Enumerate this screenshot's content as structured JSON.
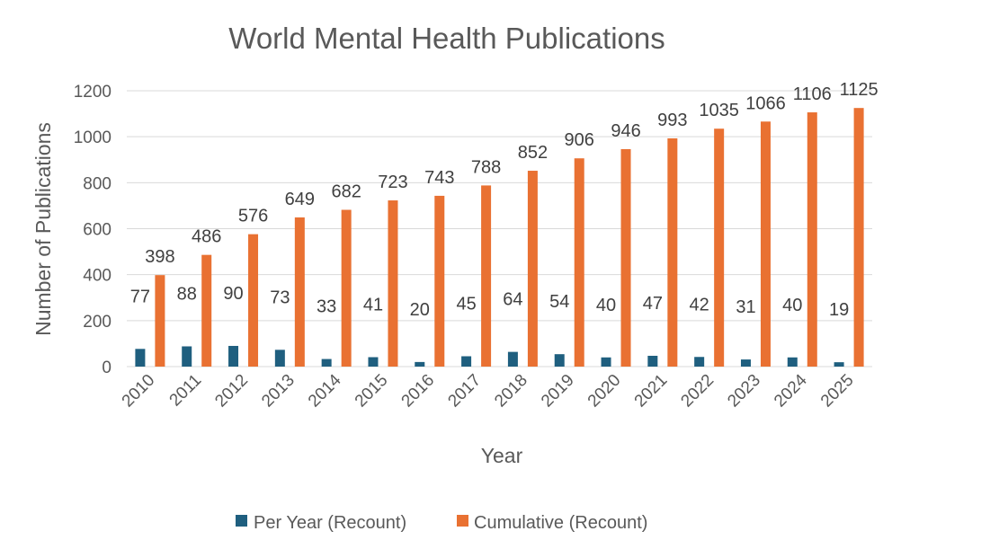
{
  "chart_data": {
    "type": "bar",
    "title": "World Mental Health Publications",
    "xlabel": "Year",
    "ylabel": "Number of Publications",
    "ylim": [
      0,
      1200
    ],
    "y_ticks": [
      0,
      200,
      400,
      600,
      800,
      1000,
      1200
    ],
    "grid": true,
    "legend_position": "bottom",
    "categories": [
      "2010",
      "2011",
      "2012",
      "2013",
      "2014",
      "2015",
      "2016",
      "2017",
      "2018",
      "2019",
      "2020",
      "2021",
      "2022",
      "2023",
      "2024",
      "2025"
    ],
    "series": [
      {
        "name": "Per Year (Recount)",
        "color": "#1f5f7f",
        "values": [
          77,
          88,
          90,
          73,
          33,
          41,
          20,
          45,
          64,
          54,
          40,
          47,
          42,
          31,
          40,
          19
        ]
      },
      {
        "name": "Cumulative (Recount)",
        "color": "#e97132",
        "values": [
          398,
          486,
          576,
          649,
          682,
          723,
          743,
          788,
          852,
          906,
          946,
          993,
          1035,
          1066,
          1106,
          1125
        ]
      }
    ]
  }
}
